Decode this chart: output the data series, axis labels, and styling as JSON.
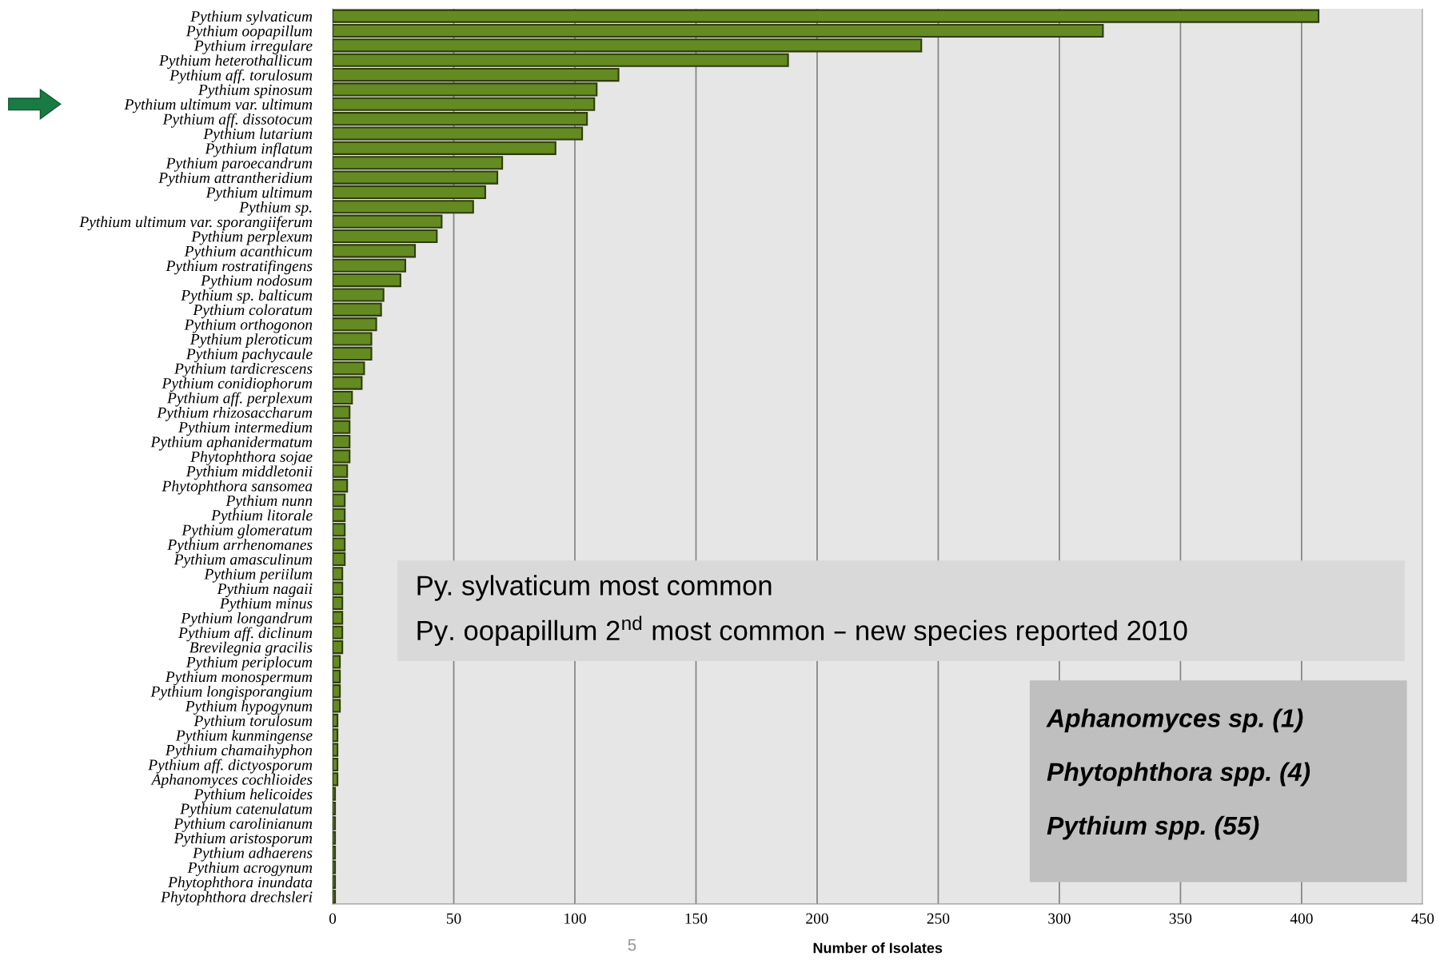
{
  "chart_data": {
    "type": "bar",
    "orientation": "horizontal",
    "xlabel": "Number of Isolates",
    "categories": [
      "Pythium sylvaticum",
      "Pythium oopapillum",
      "Pythium irregulare",
      "Pythium heterothallicum",
      "Pythium aff. torulosum",
      "Pythium spinosum",
      "Pythium ultimum var. ultimum",
      "Pythium aff. dissotocum",
      "Pythium lutarium",
      "Pythium inflatum",
      "Pythium paroecandrum",
      "Pythium attrantheridium",
      "Pythium ultimum",
      "Pythium sp.",
      "Pythium ultimum var. sporangiiferum",
      "Pythium perplexum",
      "Pythium acanthicum",
      "Pythium rostratifingens",
      "Pythium nodosum",
      "Pythium sp. balticum",
      "Pythium coloratum",
      "Pythium orthogonon",
      "Pythium pleroticum",
      "Pythium pachycaule",
      "Pythium tardicrescens",
      "Pythium conidiophorum",
      "Pythium aff. perplexum",
      "Pythium rhizosaccharum",
      "Pythium intermedium",
      "Pythium aphanidermatum",
      "Phytophthora sojae",
      "Pythium middletonii",
      "Phytophthora sansomea",
      "Pythium nunn",
      "Pythium litorale",
      "Pythium glomeratum",
      "Pythium arrhenomanes",
      "Pythium amasculinum",
      "Pythium periilum",
      "Pythium nagaii",
      "Pythium minus",
      "Pythium longandrum",
      "Pythium aff. diclinum",
      "Brevilegnia gracilis",
      "Pythium periplocum",
      "Pythium monospermum",
      "Pythium longisporangium",
      "Pythium hypogynum",
      "Pythium torulosum",
      "Pythium kunmingense",
      "Pythium chamaihyphon",
      "Pythium aff. dictyosporum",
      "Aphanomyces cochlioides",
      "Pythium helicoides",
      "Pythium catenulatum",
      "Pythium carolinianum",
      "Pythium aristosporum",
      "Pythium adhaerens",
      "Pythium acrogynum",
      "Phytophthora inundata",
      "Phytophthora drechsleri"
    ],
    "values": [
      407,
      318,
      243,
      188,
      118,
      109,
      108,
      105,
      103,
      92,
      70,
      68,
      63,
      58,
      45,
      43,
      34,
      30,
      28,
      21,
      20,
      18,
      16,
      16,
      13,
      12,
      8,
      7,
      7,
      7,
      7,
      6,
      6,
      5,
      5,
      5,
      5,
      5,
      4,
      4,
      4,
      4,
      4,
      4,
      3,
      3,
      3,
      3,
      2,
      2,
      2,
      2,
      2,
      1,
      1,
      1,
      1,
      1,
      1,
      1,
      1
    ],
    "color": "#648a22",
    "xlim": [
      0,
      450
    ],
    "xticks": [
      0,
      50,
      100,
      150,
      200,
      250,
      300,
      350,
      400,
      450
    ],
    "grid": "x",
    "annotations": [
      "Py. sylvaticum most common",
      "Py. oopapillum 2$^{nd}$ most common – new species reported 2010",
      "Aphanomyces sp. (1)",
      "Phytophthora spp. (4)",
      "Pythium spp. (55)",
      "5"
    ]
  }
}
